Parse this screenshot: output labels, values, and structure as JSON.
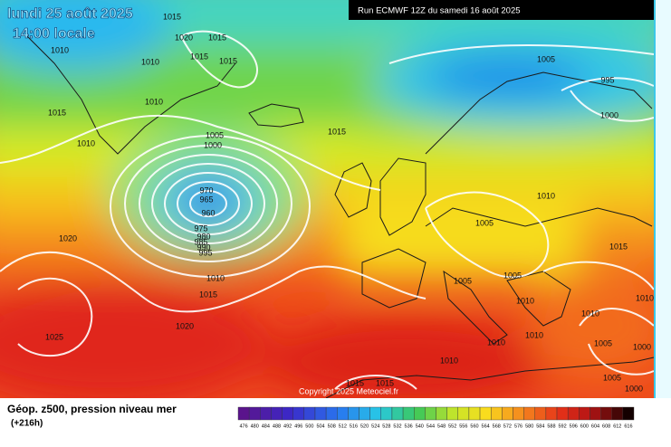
{
  "header": {
    "date": "lundi 25 août 2025",
    "time": "14:00 locale",
    "run": "Run ECMWF 12Z du samedi 16 août 2025"
  },
  "map": {
    "isobar_labels": [
      "1015",
      "1020",
      "1015",
      "1010",
      "1015",
      "1015",
      "1010",
      "1010",
      "1015",
      "1010",
      "1015",
      "1005",
      "1000",
      "970",
      "965",
      "960",
      "975",
      "980",
      "985",
      "990",
      "995",
      "1020",
      "1010",
      "1015",
      "1020",
      "1025",
      "1005",
      "995",
      "1000",
      "1010",
      "1005",
      "1015",
      "1005",
      "1005",
      "1010",
      "1010",
      "1010",
      "1010",
      "1010",
      "1005",
      "1000",
      "1010",
      "1005",
      "1015",
      "1015",
      "1000"
    ],
    "copyright": "Copyright 2025 Meteociel.fr"
  },
  "legend": {
    "title": "Géop. z500, pression niveau mer",
    "lead": "(+216h)",
    "scale": [
      476,
      480,
      484,
      488,
      492,
      496,
      500,
      504,
      508,
      512,
      516,
      520,
      524,
      528,
      532,
      536,
      540,
      544,
      548,
      552,
      556,
      560,
      564,
      568,
      572,
      576,
      580,
      584,
      588,
      592,
      596,
      600,
      604,
      608,
      612,
      616
    ]
  }
}
